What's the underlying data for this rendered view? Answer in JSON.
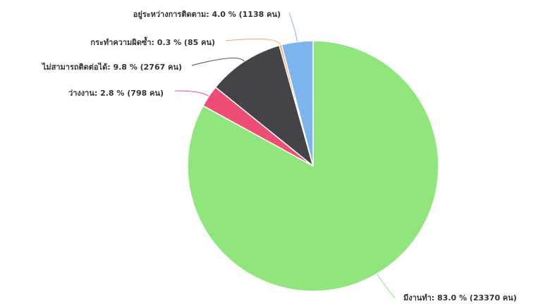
{
  "chart_data": {
    "type": "pie",
    "title": "",
    "start_angle_deg": 0,
    "direction": "clockwise",
    "slices": [
      {
        "name": "มีงานทำ",
        "percent_label": "83.0 %",
        "count_label": "(23370 คน)",
        "value": 23370,
        "color": "#90e67d",
        "label": "มีงานทำ: 83.0 % (23370 คน)"
      },
      {
        "name": "ว่างงาน",
        "percent_label": "2.8 %",
        "count_label": "(798 คน)",
        "value": 798,
        "color": "#ee4e75",
        "label": "ว่างงาน: 2.8 % (798 คน)"
      },
      {
        "name": "ไม่สามารถติดต่อได้",
        "percent_label": "9.8 %",
        "count_label": "(2767 คน)",
        "value": 2767,
        "color": "#434348",
        "label": "ไม่สามารถติดต่อได้: 9.8 % (2767 คน)"
      },
      {
        "name": "กระทำความผิดซ้ำ",
        "percent_label": "0.3 %",
        "count_label": "(85 คน)",
        "value": 85,
        "color": "#f7a35c",
        "label": "กระทำความผิดซ้ำ: 0.3 % (85 คน)"
      },
      {
        "name": "อยู่ระหว่างการติดตาม",
        "percent_label": "4.0 %",
        "count_label": "(1138 คน)",
        "value": 1138,
        "color": "#7cb5ec",
        "label": "อยู่ระหว่างการติดตาม: 4.0 % (1138 คน)"
      }
    ]
  }
}
